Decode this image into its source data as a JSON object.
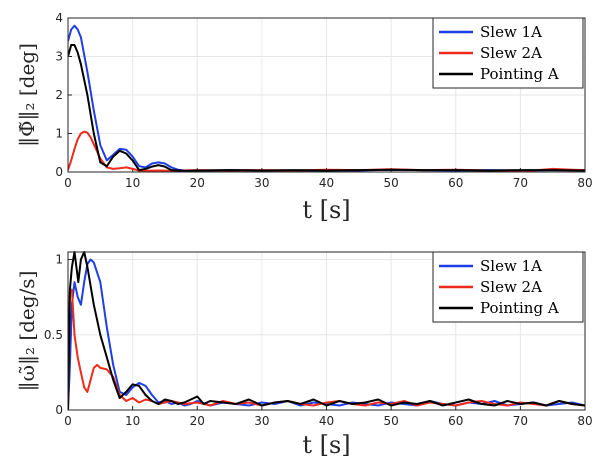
{
  "chart_data": [
    {
      "type": "line",
      "xlabel": "t [s]",
      "ylabel": "‖Φ̃‖₂ [deg]",
      "xlim": [
        0,
        80
      ],
      "ylim": [
        0,
        4
      ],
      "xticks": [
        "0",
        "10",
        "20",
        "30",
        "40",
        "50",
        "60",
        "70",
        "80"
      ],
      "yticks": [
        "0",
        "1",
        "2",
        "3",
        "4"
      ],
      "grid": true,
      "legend_position": "top-right",
      "series": [
        {
          "name": "Slew 1A",
          "color": "#1f3ee6",
          "x": [
            0,
            0.5,
            1,
            1.5,
            2,
            3,
            4,
            5,
            6,
            7,
            8,
            9,
            10,
            11,
            12,
            13,
            14,
            15,
            16,
            17,
            18,
            20,
            25,
            30,
            35,
            40,
            45,
            50,
            55,
            60,
            65,
            70,
            75,
            80
          ],
          "y": [
            3.4,
            3.7,
            3.8,
            3.7,
            3.5,
            2.6,
            1.6,
            0.7,
            0.3,
            0.45,
            0.6,
            0.58,
            0.4,
            0.15,
            0.12,
            0.22,
            0.25,
            0.22,
            0.12,
            0.06,
            0.04,
            0.03,
            0.05,
            0.04,
            0.03,
            0.05,
            0.04,
            0.06,
            0.05,
            0.04,
            0.05,
            0.04,
            0.05,
            0.05
          ]
        },
        {
          "name": "Slew 2A",
          "color": "#ee2b1c",
          "x": [
            0,
            0.5,
            1,
            1.5,
            2,
            2.5,
            3,
            3.5,
            4,
            5,
            6,
            7,
            8,
            9,
            10,
            11,
            12,
            14,
            16,
            18,
            20,
            25,
            30,
            35,
            40,
            45,
            50,
            55,
            60,
            65,
            70,
            72,
            75,
            78,
            80
          ],
          "y": [
            0.05,
            0.3,
            0.6,
            0.85,
            1.0,
            1.05,
            1.02,
            0.9,
            0.72,
            0.35,
            0.12,
            0.08,
            0.1,
            0.12,
            0.08,
            0.04,
            0.03,
            0.04,
            0.03,
            0.04,
            0.05,
            0.04,
            0.05,
            0.04,
            0.06,
            0.05,
            0.07,
            0.05,
            0.06,
            0.04,
            0.02,
            0.04,
            0.08,
            0.06,
            0.05
          ]
        },
        {
          "name": "Pointing A",
          "color": "#000000",
          "x": [
            0,
            0.5,
            1,
            1.5,
            2,
            3,
            4,
            5,
            6,
            7,
            8,
            9,
            10,
            11,
            12,
            13,
            14,
            15,
            16,
            18,
            20,
            25,
            30,
            35,
            40,
            45,
            50,
            55,
            60,
            65,
            70,
            75,
            80
          ],
          "y": [
            3.0,
            3.3,
            3.3,
            3.1,
            2.8,
            2.0,
            1.0,
            0.25,
            0.15,
            0.4,
            0.55,
            0.48,
            0.3,
            0.05,
            0.08,
            0.14,
            0.18,
            0.14,
            0.05,
            0.03,
            0.04,
            0.05,
            0.04,
            0.05,
            0.04,
            0.05,
            0.06,
            0.05,
            0.05,
            0.04,
            0.05,
            0.05,
            0.04
          ]
        }
      ]
    },
    {
      "type": "line",
      "xlabel": "t [s]",
      "ylabel": "‖ω̃‖₂ [deg/s]",
      "xlim": [
        0,
        80
      ],
      "ylim": [
        0,
        1.05
      ],
      "xticks": [
        "0",
        "10",
        "20",
        "30",
        "40",
        "50",
        "60",
        "70",
        "80"
      ],
      "yticks": [
        "0",
        "0.5",
        "1"
      ],
      "grid": true,
      "legend_position": "top-right",
      "series": [
        {
          "name": "Slew 1A",
          "color": "#1f3ee6",
          "x": [
            0,
            0.3,
            0.6,
            1,
            1.5,
            2,
            2.5,
            3,
            3.5,
            4,
            5,
            6,
            7,
            8,
            9,
            10,
            11,
            12,
            13,
            14,
            15,
            16,
            17,
            18,
            19,
            20,
            22,
            24,
            26,
            28,
            30,
            32,
            34,
            36,
            38,
            40,
            42,
            44,
            46,
            48,
            50,
            52,
            54,
            56,
            58,
            60,
            62,
            64,
            66,
            68,
            70,
            72,
            74,
            76,
            78,
            80
          ],
          "y": [
            0,
            0.3,
            0.7,
            0.85,
            0.75,
            0.7,
            0.85,
            0.97,
            1.0,
            0.98,
            0.85,
            0.55,
            0.3,
            0.12,
            0.1,
            0.15,
            0.18,
            0.16,
            0.1,
            0.05,
            0.06,
            0.04,
            0.05,
            0.03,
            0.04,
            0.06,
            0.03,
            0.05,
            0.04,
            0.03,
            0.05,
            0.04,
            0.06,
            0.03,
            0.05,
            0.04,
            0.03,
            0.05,
            0.04,
            0.03,
            0.05,
            0.04,
            0.03,
            0.06,
            0.04,
            0.03,
            0.05,
            0.04,
            0.06,
            0.03,
            0.04,
            0.05,
            0.03,
            0.04,
            0.05,
            0.03
          ]
        },
        {
          "name": "Slew 2A",
          "color": "#ee2b1c",
          "x": [
            0,
            0.3,
            0.6,
            1,
            1.5,
            2,
            2.5,
            3,
            3.5,
            4,
            4.5,
            5,
            6,
            7,
            8,
            9,
            10,
            11,
            12,
            13,
            14,
            15,
            16,
            18,
            20,
            22,
            24,
            26,
            28,
            30,
            32,
            34,
            36,
            38,
            40,
            42,
            44,
            46,
            48,
            50,
            52,
            54,
            56,
            58,
            60,
            62,
            64,
            66,
            68,
            70,
            72,
            74,
            76,
            78,
            80
          ],
          "y": [
            0,
            0.8,
            0.8,
            0.5,
            0.35,
            0.25,
            0.15,
            0.12,
            0.2,
            0.28,
            0.3,
            0.28,
            0.27,
            0.22,
            0.1,
            0.06,
            0.08,
            0.05,
            0.07,
            0.06,
            0.04,
            0.05,
            0.06,
            0.04,
            0.05,
            0.03,
            0.06,
            0.04,
            0.05,
            0.03,
            0.05,
            0.06,
            0.04,
            0.03,
            0.05,
            0.06,
            0.04,
            0.03,
            0.05,
            0.04,
            0.06,
            0.03,
            0.05,
            0.04,
            0.03,
            0.05,
            0.06,
            0.04,
            0.03,
            0.05,
            0.04,
            0.03,
            0.06,
            0.04,
            0.03
          ]
        },
        {
          "name": "Pointing A",
          "color": "#000000",
          "x": [
            0,
            0.3,
            0.6,
            1,
            1.3,
            1.6,
            2,
            2.5,
            3,
            4,
            5,
            6,
            7,
            8,
            9,
            10,
            11,
            12,
            13,
            14,
            15,
            16,
            17,
            18,
            19,
            20,
            21,
            22,
            24,
            26,
            28,
            30,
            32,
            34,
            36,
            38,
            40,
            42,
            44,
            46,
            48,
            50,
            52,
            54,
            56,
            58,
            60,
            62,
            64,
            66,
            68,
            70,
            72,
            74,
            76,
            78,
            80
          ],
          "y": [
            0,
            0.8,
            0.95,
            1.05,
            0.95,
            0.85,
            1.0,
            1.05,
            0.95,
            0.7,
            0.5,
            0.35,
            0.2,
            0.08,
            0.12,
            0.17,
            0.16,
            0.1,
            0.06,
            0.04,
            0.07,
            0.06,
            0.04,
            0.05,
            0.07,
            0.09,
            0.04,
            0.06,
            0.05,
            0.04,
            0.07,
            0.03,
            0.05,
            0.06,
            0.04,
            0.07,
            0.03,
            0.06,
            0.04,
            0.05,
            0.07,
            0.03,
            0.05,
            0.04,
            0.06,
            0.03,
            0.05,
            0.07,
            0.04,
            0.03,
            0.06,
            0.04,
            0.05,
            0.03,
            0.06,
            0.04,
            0.03
          ]
        }
      ]
    }
  ]
}
